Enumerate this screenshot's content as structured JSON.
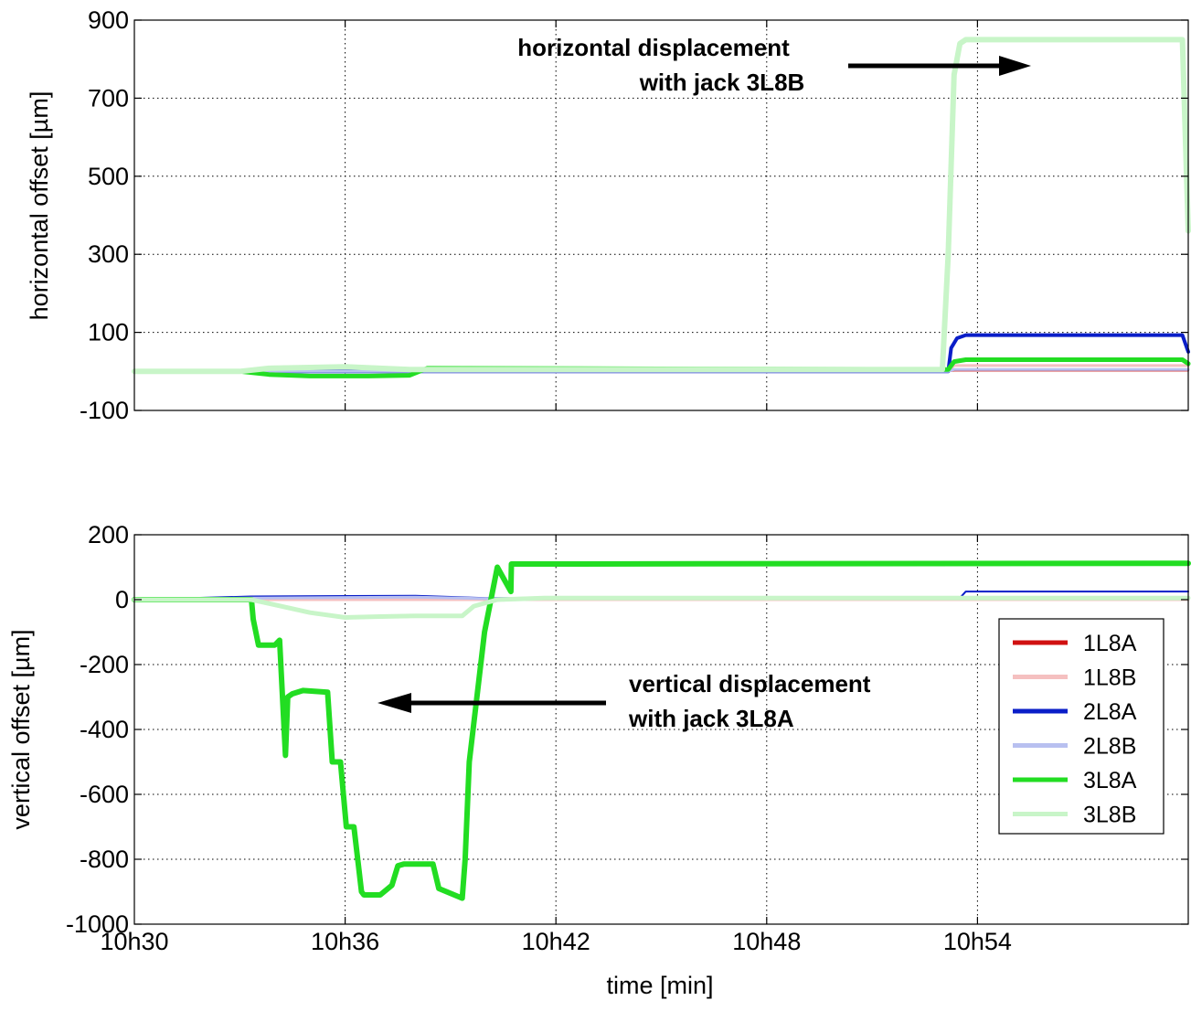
{
  "chart_data": [
    {
      "type": "line",
      "ylabel": "horizontal offset [µm]",
      "xlim": [
        0,
        1800
      ],
      "ylim": [
        -100,
        900
      ],
      "yticks": [
        900,
        700,
        500,
        300,
        100,
        -100
      ],
      "grid": true,
      "annotation": {
        "lines": [
          "horizontal displacement",
          "with jack 3L8B"
        ],
        "arrow": "right"
      },
      "series": [
        {
          "name": "1L8A",
          "color": "#d01010",
          "width": 2,
          "x": [
            0,
            1390,
            1400,
            1800
          ],
          "y": [
            0,
            0,
            2,
            2
          ]
        },
        {
          "name": "1L8B",
          "color": "#f5c0c0",
          "width": 3,
          "x": [
            0,
            1390,
            1400,
            1800
          ],
          "y": [
            0,
            0,
            15,
            15
          ]
        },
        {
          "name": "2L8A",
          "color": "#0a1ec8",
          "width": 4,
          "x": [
            0,
            1350,
            1390,
            1395,
            1405,
            1420,
            1790,
            1800
          ],
          "y": [
            0,
            0,
            0,
            60,
            85,
            93,
            93,
            50
          ]
        },
        {
          "name": "2L8B",
          "color": "#b8c0f0",
          "width": 3,
          "x": [
            0,
            1390,
            1400,
            1800
          ],
          "y": [
            0,
            0,
            5,
            5
          ]
        },
        {
          "name": "3L8A",
          "color": "#22dd22",
          "width": 5,
          "x": [
            0,
            180,
            230,
            300,
            400,
            470,
            500,
            1390,
            1400,
            1420,
            1790,
            1800
          ],
          "y": [
            0,
            0,
            -8,
            -12,
            -12,
            -10,
            8,
            5,
            25,
            30,
            30,
            20
          ]
        },
        {
          "name": "3L8B",
          "color": "#c8f5c8",
          "width": 6,
          "x": [
            0,
            180,
            230,
            300,
            360,
            420,
            470,
            500,
            1380,
            1390,
            1400,
            1410,
            1420,
            1790,
            1800
          ],
          "y": [
            0,
            0,
            8,
            10,
            12,
            8,
            5,
            5,
            5,
            300,
            760,
            840,
            850,
            850,
            360
          ]
        }
      ]
    },
    {
      "type": "line",
      "xlabel": "time [min]",
      "ylabel": "vertical offset [µm]",
      "xlim": [
        0,
        1800
      ],
      "ylim": [
        -1000,
        200
      ],
      "xticks": [
        0,
        360,
        720,
        1080,
        1440
      ],
      "xticklabels": [
        "10h30",
        "10h36",
        "10h42",
        "10h48",
        "10h54"
      ],
      "yticks": [
        200,
        0,
        -200,
        -400,
        -600,
        -800,
        -1000
      ],
      "grid": true,
      "legend_position": "lower-right",
      "annotation": {
        "lines": [
          "vertical displacement",
          "with jack 3L8A"
        ],
        "arrow": "left"
      },
      "series": [
        {
          "name": "1L8A",
          "color": "#d01010",
          "width": 2,
          "x": [
            0,
            1800
          ],
          "y": [
            0,
            0
          ]
        },
        {
          "name": "1L8B",
          "color": "#f5c0c0",
          "width": 3,
          "x": [
            0,
            1800
          ],
          "y": [
            0,
            0
          ]
        },
        {
          "name": "2L8A",
          "color": "#0a1ec8",
          "width": 2,
          "x": [
            0,
            200,
            480,
            600,
            1410,
            1420,
            1800
          ],
          "y": [
            0,
            10,
            12,
            5,
            5,
            25,
            25
          ]
        },
        {
          "name": "2L8B",
          "color": "#b8c0f0",
          "width": 3,
          "x": [
            0,
            200,
            480,
            600,
            1800
          ],
          "y": [
            0,
            5,
            8,
            3,
            3
          ]
        },
        {
          "name": "3L8A",
          "color": "#22dd22",
          "width": 6,
          "x": [
            0,
            200,
            203,
            212,
            240,
            248,
            258,
            262,
            270,
            288,
            330,
            338,
            352,
            362,
            375,
            388,
            392,
            398,
            420,
            440,
            450,
            460,
            480,
            510,
            520,
            560,
            565,
            572,
            598,
            620,
            643,
            644,
            700,
            1800
          ],
          "y": [
            0,
            0,
            -60,
            -140,
            -140,
            -125,
            -480,
            -300,
            -290,
            -280,
            -285,
            -500,
            -500,
            -700,
            -700,
            -900,
            -910,
            -910,
            -910,
            -880,
            -820,
            -815,
            -815,
            -815,
            -890,
            -920,
            -800,
            -500,
            -100,
            100,
            25,
            110,
            110,
            112
          ]
        },
        {
          "name": "3L8B",
          "color": "#c8f5c8",
          "width": 5,
          "x": [
            0,
            200,
            250,
            300,
            360,
            420,
            480,
            560,
            580,
            620,
            700,
            1800
          ],
          "y": [
            0,
            0,
            -20,
            -40,
            -55,
            -52,
            -50,
            -50,
            -20,
            0,
            5,
            5
          ]
        }
      ]
    }
  ]
}
